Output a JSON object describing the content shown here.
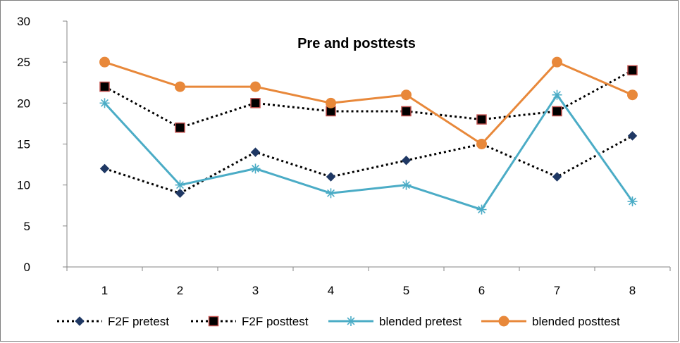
{
  "chart_data": {
    "type": "line",
    "title": "Pre and posttests",
    "xlabel": "",
    "ylabel": "",
    "categories": [
      "1",
      "2",
      "3",
      "4",
      "5",
      "6",
      "7",
      "8"
    ],
    "ylim": [
      0,
      30
    ],
    "yticks": [
      0,
      5,
      10,
      15,
      20,
      25,
      30
    ],
    "grid": false,
    "legend_position": "bottom",
    "series": [
      {
        "name": "F2F pretest",
        "values": [
          12,
          9,
          14,
          11,
          13,
          15,
          11,
          16
        ],
        "color": "#000000",
        "marker": "diamond",
        "marker_color": "#1f3864",
        "line_style": "dotted"
      },
      {
        "name": "F2F posttest",
        "values": [
          22,
          17,
          20,
          19,
          19,
          18,
          19,
          24
        ],
        "color": "#000000",
        "marker": "square",
        "marker_color": "#000000",
        "marker_edge": "#c0504d",
        "line_style": "dotted"
      },
      {
        "name": "blended pretest",
        "values": [
          20,
          10,
          12,
          9,
          10,
          7,
          21,
          8
        ],
        "color": "#4bacc6",
        "marker": "asterisk",
        "marker_color": "#4bacc6",
        "line_style": "solid"
      },
      {
        "name": "blended posttest",
        "values": [
          25,
          22,
          22,
          20,
          21,
          15,
          25,
          21
        ],
        "color": "#e8883a",
        "marker": "circle",
        "marker_color": "#e8883a",
        "line_style": "solid"
      }
    ]
  }
}
